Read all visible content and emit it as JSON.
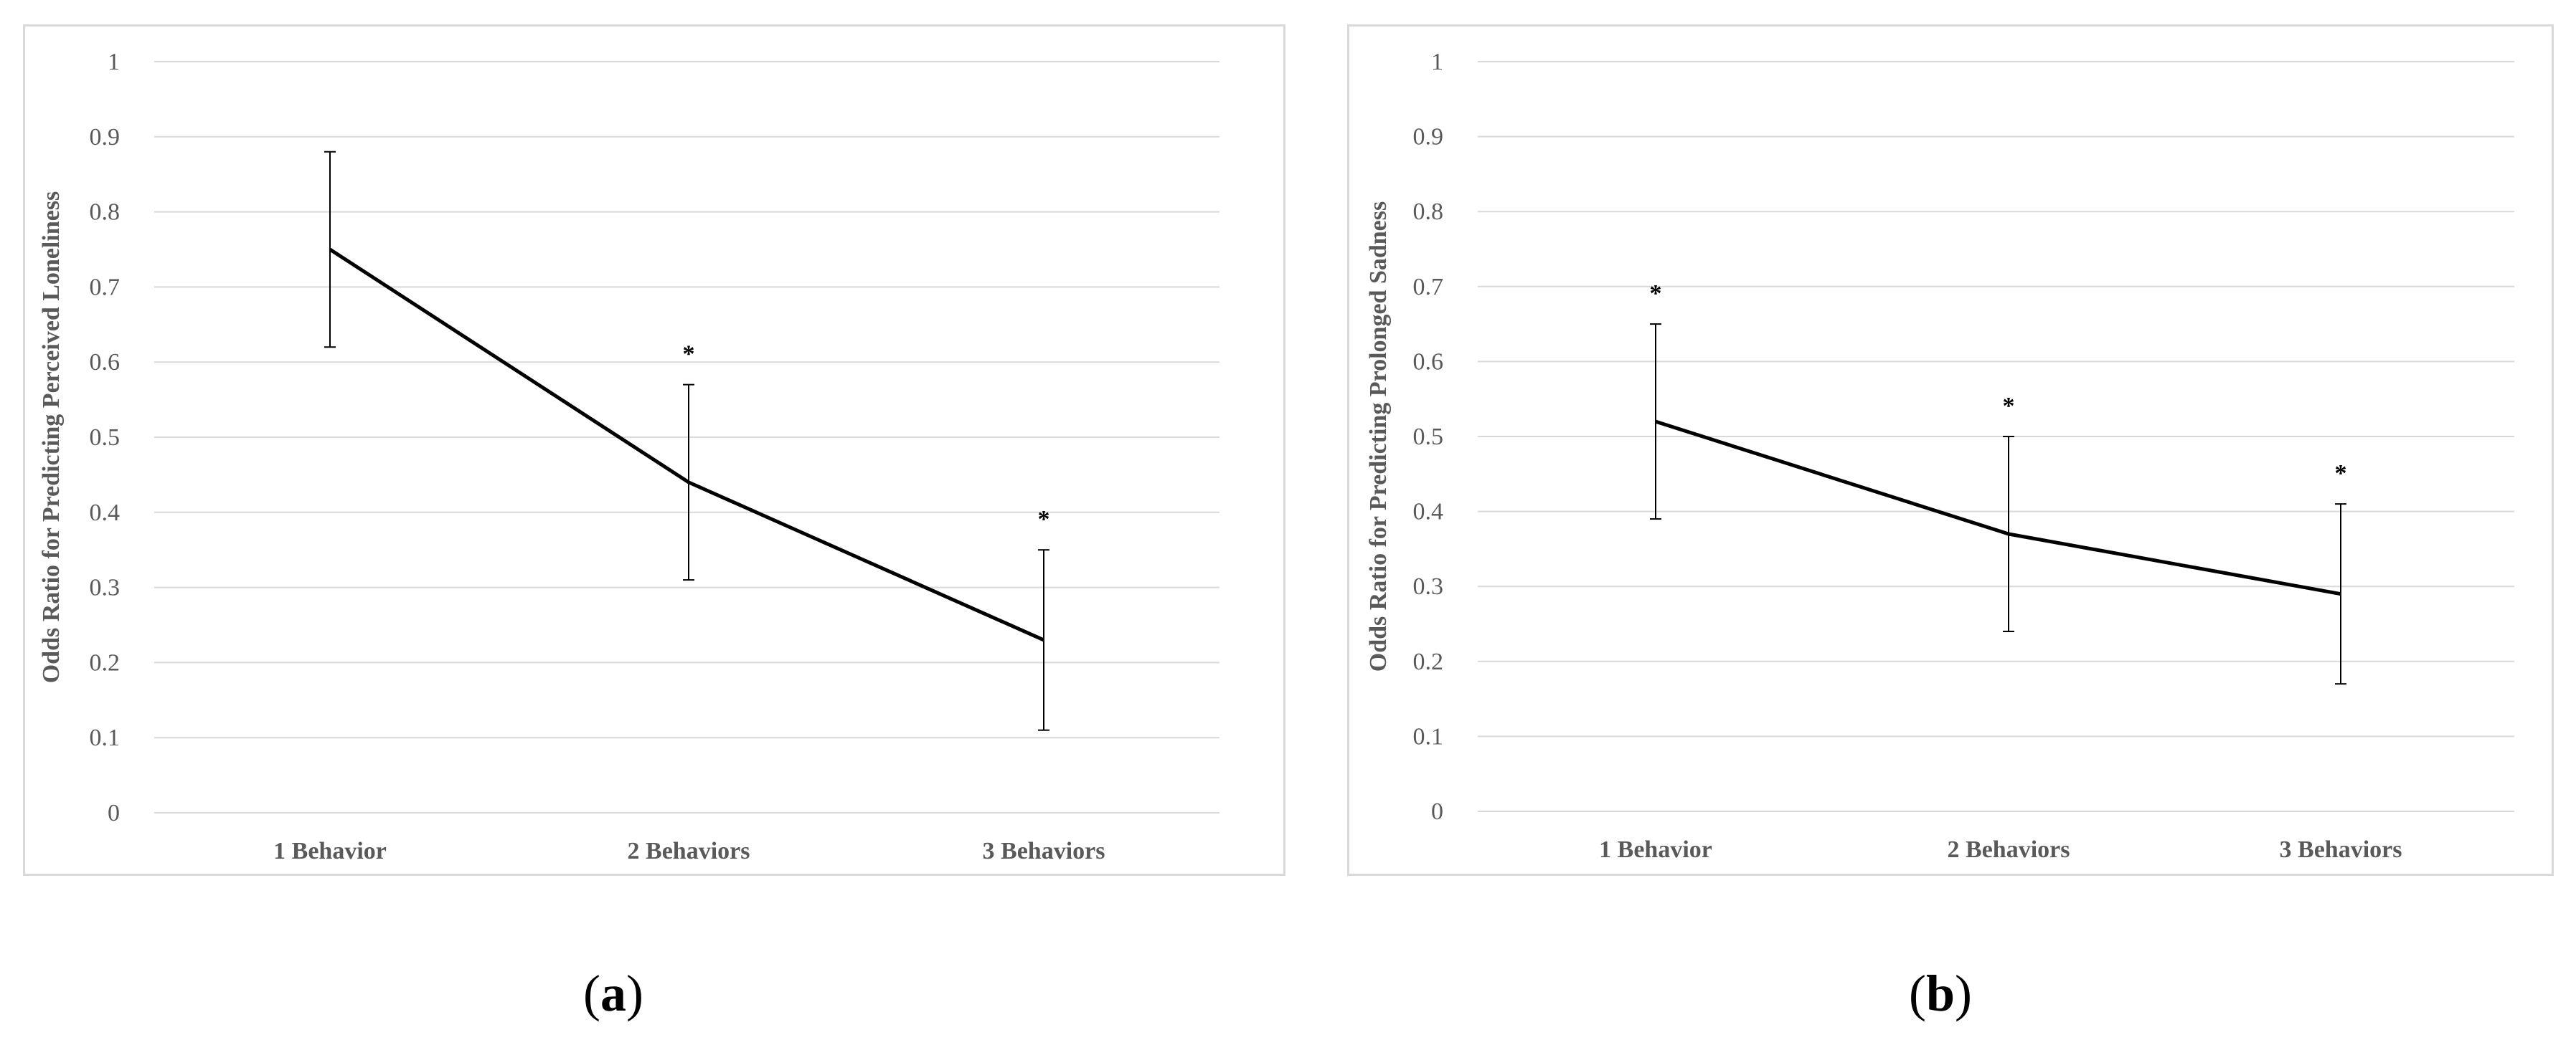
{
  "chart_data": [
    {
      "panel_id": "a",
      "type": "line",
      "title": "",
      "xlabel": "",
      "ylabel": "Odds Ratio for Predicting Perceived Loneliness",
      "categories": [
        "1 Behavior",
        "2 Behaviors",
        "3 Behaviors"
      ],
      "series": [
        {
          "values": [
            0.75,
            0.44,
            0.23
          ],
          "error_upper": [
            0.88,
            0.57,
            0.35
          ],
          "error_lower": [
            0.62,
            0.31,
            0.11
          ],
          "significance": [
            "",
            "*",
            "*"
          ]
        }
      ],
      "ylim": [
        0,
        1
      ],
      "yticks": [
        0,
        0.1,
        0.2,
        0.3,
        0.4,
        0.5,
        0.6,
        0.7,
        0.8,
        0.9,
        1
      ],
      "ytick_labels": [
        "0",
        "0.1",
        "0.2",
        "0.3",
        "0.4",
        "0.5",
        "0.6",
        "0.7",
        "0.8",
        "0.9",
        "1"
      ],
      "grid": true,
      "line_color": "#000000",
      "grid_color": "#d9d9d9",
      "caption": {
        "open": "(",
        "letter": "a",
        "close": ")"
      }
    },
    {
      "panel_id": "b",
      "type": "line",
      "title": "",
      "xlabel": "",
      "ylabel": "Odds Ratio for Predicting Prolonged Sadness",
      "categories": [
        "1 Behavior",
        "2 Behaviors",
        "3 Behaviors"
      ],
      "series": [
        {
          "values": [
            0.52,
            0.37,
            0.29
          ],
          "error_upper": [
            0.65,
            0.5,
            0.41
          ],
          "error_lower": [
            0.39,
            0.24,
            0.17
          ],
          "significance": [
            "*",
            "*",
            "*"
          ]
        }
      ],
      "ylim": [
        0,
        1
      ],
      "yticks": [
        0,
        0.1,
        0.2,
        0.3,
        0.4,
        0.5,
        0.6,
        0.7,
        0.8,
        0.9,
        1
      ],
      "ytick_labels": [
        "0",
        "0.1",
        "0.2",
        "0.3",
        "0.4",
        "0.5",
        "0.6",
        "0.7",
        "0.8",
        "0.9",
        "1"
      ],
      "grid": true,
      "line_color": "#000000",
      "grid_color": "#d9d9d9",
      "caption": {
        "open": "(",
        "letter": "b",
        "close": ")"
      }
    }
  ]
}
